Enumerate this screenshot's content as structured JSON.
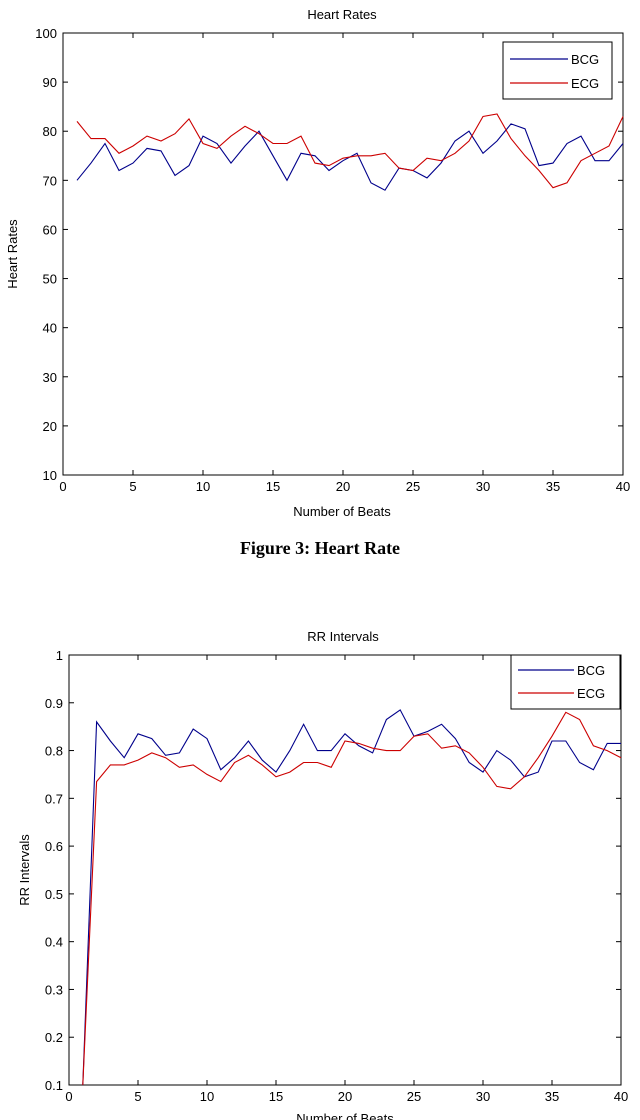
{
  "captions": {
    "figure3": "Figure 3: Heart Rate"
  },
  "chart_data": [
    {
      "type": "line",
      "title": "Heart Rates",
      "xlabel": "Number of Beats",
      "ylabel": "Heart Rates",
      "xlim": [
        0,
        40
      ],
      "ylim": [
        10,
        100
      ],
      "xticks": [
        0,
        5,
        10,
        15,
        20,
        25,
        30,
        35,
        40
      ],
      "yticks": [
        10,
        20,
        30,
        40,
        50,
        60,
        70,
        80,
        90,
        100
      ],
      "grid": false,
      "legend": "top-right",
      "x": [
        1,
        2,
        3,
        4,
        5,
        6,
        7,
        8,
        9,
        10,
        11,
        12,
        13,
        14,
        15,
        16,
        17,
        18,
        19,
        20,
        21,
        22,
        23,
        24,
        25,
        26,
        27,
        28,
        29,
        30,
        31,
        32,
        33,
        34,
        35,
        36,
        37,
        38,
        39,
        40
      ],
      "series": [
        {
          "name": "BCG",
          "color": "#00008b",
          "values": [
            70,
            73.5,
            77.5,
            72,
            73.5,
            76.5,
            76,
            71,
            73,
            79,
            77.5,
            73.5,
            77,
            80,
            75,
            70,
            75.5,
            75,
            72,
            74,
            75.5,
            69.5,
            68,
            72.5,
            72,
            70.5,
            73.5,
            78,
            80,
            75.5,
            78,
            81.5,
            80.5,
            73,
            73.5,
            77.5,
            79,
            74,
            74,
            77.5
          ]
        },
        {
          "name": "ECG",
          "color": "#cc0000",
          "values": [
            82,
            78.5,
            78.5,
            75.5,
            77,
            79,
            78,
            79.5,
            82.5,
            77.5,
            76.5,
            79,
            81,
            79.5,
            77.5,
            77.5,
            79,
            73.5,
            73,
            74.5,
            75,
            75,
            75.5,
            72.5,
            72,
            74.5,
            74,
            75.5,
            78,
            83,
            83.5,
            78.5,
            75,
            72,
            68.5,
            69.5,
            74,
            75.5,
            77,
            83
          ]
        }
      ]
    },
    {
      "type": "line",
      "title": "RR Intervals",
      "xlabel": "Number of Beats",
      "ylabel": "RR Intervals",
      "xlim": [
        0,
        40
      ],
      "ylim": [
        0.1,
        1
      ],
      "xticks": [
        0,
        5,
        10,
        15,
        20,
        25,
        30,
        35,
        40
      ],
      "yticks": [
        0.1,
        0.2,
        0.3,
        0.4,
        0.5,
        0.6,
        0.7,
        0.8,
        0.9,
        1
      ],
      "grid": false,
      "legend": "top-right",
      "x": [
        1,
        2,
        3,
        4,
        5,
        6,
        7,
        8,
        9,
        10,
        11,
        12,
        13,
        14,
        15,
        16,
        17,
        18,
        19,
        20,
        21,
        22,
        23,
        24,
        25,
        26,
        27,
        28,
        29,
        30,
        31,
        32,
        33,
        34,
        35,
        36,
        37,
        38,
        39,
        40
      ],
      "series": [
        {
          "name": "BCG",
          "color": "#00008b",
          "values": [
            0.1,
            0.86,
            0.82,
            0.785,
            0.835,
            0.825,
            0.79,
            0.795,
            0.845,
            0.825,
            0.76,
            0.785,
            0.82,
            0.78,
            0.755,
            0.8,
            0.855,
            0.8,
            0.8,
            0.835,
            0.81,
            0.795,
            0.865,
            0.885,
            0.83,
            0.84,
            0.855,
            0.825,
            0.775,
            0.755,
            0.8,
            0.78,
            0.745,
            0.755,
            0.82,
            0.82,
            0.775,
            0.76,
            0.815,
            0.815
          ]
        },
        {
          "name": "ECG",
          "color": "#cc0000",
          "values": [
            0.1,
            0.735,
            0.77,
            0.77,
            0.78,
            0.795,
            0.785,
            0.765,
            0.77,
            0.75,
            0.735,
            0.775,
            0.79,
            0.77,
            0.745,
            0.755,
            0.775,
            0.775,
            0.765,
            0.82,
            0.815,
            0.805,
            0.8,
            0.8,
            0.83,
            0.835,
            0.805,
            0.81,
            0.795,
            0.765,
            0.725,
            0.72,
            0.745,
            0.785,
            0.83,
            0.88,
            0.865,
            0.81,
            0.8,
            0.785
          ]
        }
      ]
    }
  ]
}
